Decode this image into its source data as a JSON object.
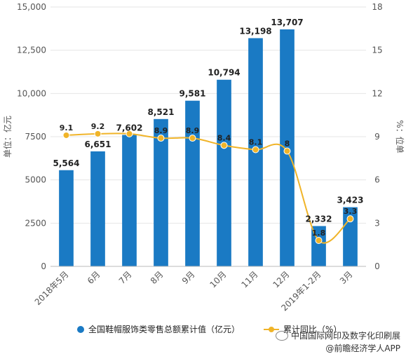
{
  "chart_data": {
    "type": "bar",
    "categories": [
      "2018年5月",
      "6月",
      "7月",
      "8月",
      "9月",
      "10月",
      "11月",
      "12月",
      "2019年1-2月",
      "3月"
    ],
    "bar_series": {
      "name": "全国鞋帽服饰类零售总额累计值（亿元）",
      "values": [
        5564,
        6651,
        7602,
        8521,
        9581,
        10794,
        13198,
        13707,
        2332,
        3423
      ],
      "labels": [
        "5,564",
        "6,651",
        "7,602",
        "8,521",
        "9,581",
        "10,794",
        "13,198",
        "13,707",
        "2,332",
        "3,423"
      ]
    },
    "line_series": {
      "name": "累计同比（%）",
      "values": [
        9.1,
        9.2,
        9.2,
        8.9,
        8.9,
        8.4,
        8.1,
        8,
        1.8,
        3.3
      ],
      "labels": [
        "9.1",
        "9.2",
        "",
        "8.9",
        "8.9",
        "8.4",
        "8.1",
        "8",
        "1.8",
        "3.3"
      ]
    },
    "ylabel": "单位：亿元",
    "y2label": "%：位单",
    "ylim": [
      0,
      15000
    ],
    "y2lim": [
      0,
      18
    ],
    "y_ticks": [
      "0",
      "2500",
      "5000",
      "7500",
      "10,000",
      "12,500",
      "15,000"
    ],
    "y2_ticks": [
      "0",
      "3",
      "6",
      "9",
      "12",
      "15",
      "18"
    ],
    "colors": {
      "bar": "#1a7ac4",
      "line": "#f0b429",
      "grid": "#e6e6e6"
    },
    "grid": true,
    "legend_position": "bottom"
  },
  "watermark": {
    "line1": "中国国际网印及数字化印刷展",
    "line2": "@前瞻经济学人APP"
  }
}
